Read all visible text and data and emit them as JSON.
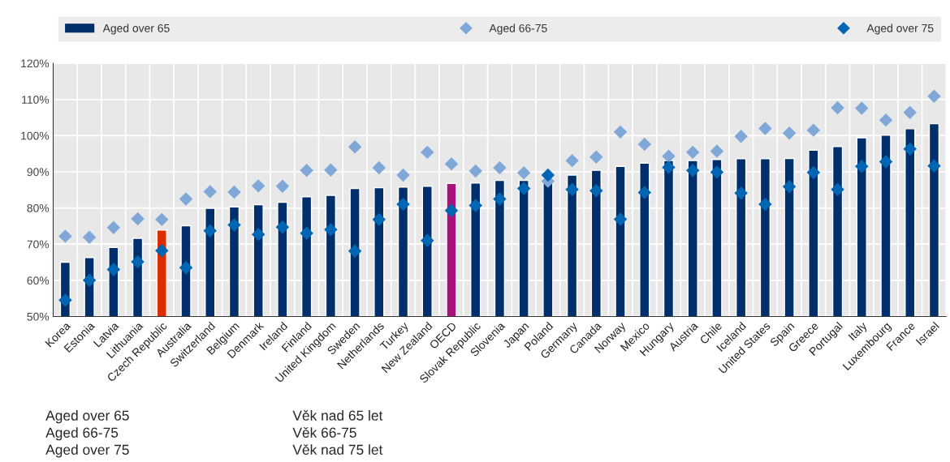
{
  "chart_data": {
    "type": "bar",
    "categories": [
      "Korea",
      "Estonia",
      "Latvia",
      "Lithuania",
      "Czech Republic",
      "Australia",
      "Switzerland",
      "Belgium",
      "Denmark",
      "Ireland",
      "Finland",
      "United Kingdom",
      "Sweden",
      "Netherlands",
      "Turkey",
      "New Zealand",
      "OECD",
      "Slovak Republic",
      "Slovenia",
      "Japan",
      "Poland",
      "Germany",
      "Canada",
      "Norway",
      "Mexico",
      "Hungary",
      "Austria",
      "Chile",
      "Iceland",
      "United States",
      "Spain",
      "Greece",
      "Portugal",
      "Italy",
      "Luxembourg",
      "France",
      "Israel"
    ],
    "series": [
      {
        "name": "Aged over 65",
        "color": "#002f6c",
        "colors": [
          "#002f6c",
          "#002f6c",
          "#002f6c",
          "#002f6c",
          "#dc2d00",
          "#002f6c",
          "#002f6c",
          "#002f6c",
          "#002f6c",
          "#002f6c",
          "#002f6c",
          "#002f6c",
          "#002f6c",
          "#002f6c",
          "#002f6c",
          "#002f6c",
          "#a6137a",
          "#002f6c",
          "#002f6c",
          "#002f6c",
          "#002f6c",
          "#002f6c",
          "#002f6c",
          "#002f6c",
          "#002f6c",
          "#002f6c",
          "#002f6c",
          "#002f6c",
          "#002f6c",
          "#002f6c",
          "#002f6c",
          "#002f6c",
          "#002f6c",
          "#002f6c",
          "#002f6c",
          "#002f6c",
          "#002f6c"
        ],
        "values": [
          65.0,
          66.3,
          69.1,
          71.6,
          73.9,
          75.1,
          79.9,
          80.3,
          80.9,
          81.6,
          83.1,
          83.5,
          85.4,
          85.6,
          85.8,
          86.0,
          86.8,
          86.9,
          87.6,
          87.6,
          88.0,
          89.1,
          90.4,
          91.5,
          92.4,
          93.1,
          93.1,
          93.4,
          93.6,
          93.6,
          93.7,
          96.0,
          97.0,
          99.4,
          100.1,
          101.9,
          103.3
        ]
      },
      {
        "name": "Aged 66-75",
        "type": "scatter",
        "marker": "diamond",
        "color": "#7fa8d9",
        "values": [
          72.2,
          71.9,
          74.6,
          77.0,
          76.8,
          82.5,
          84.5,
          84.4,
          86.1,
          86.0,
          90.4,
          90.5,
          96.9,
          91.1,
          89.1,
          95.4,
          92.2,
          90.2,
          91.1,
          89.7,
          87.4,
          93.1,
          94.1,
          101.0,
          97.6,
          94.3,
          95.4,
          95.7,
          99.8,
          102.0,
          100.7,
          101.5,
          107.7,
          107.6,
          104.3,
          106.4,
          110.9
        ]
      },
      {
        "name": "Aged over 75",
        "type": "scatter",
        "marker": "diamond",
        "color": "#0066b3",
        "values": [
          54.5,
          60.0,
          63.0,
          65.1,
          68.2,
          63.5,
          73.7,
          75.3,
          72.7,
          74.7,
          73.0,
          74.0,
          68.1,
          76.8,
          81.0,
          71.0,
          79.3,
          80.7,
          82.5,
          85.4,
          89.1,
          85.1,
          84.8,
          76.9,
          84.3,
          91.2,
          90.4,
          89.9,
          84.1,
          81.0,
          85.9,
          89.8,
          85.1,
          91.5,
          92.8,
          96.3,
          91.6
        ]
      }
    ],
    "ylim": [
      50,
      120
    ],
    "yticks": [
      {
        "value": 50,
        "label": "50%"
      },
      {
        "value": 60,
        "label": "60%"
      },
      {
        "value": 70,
        "label": "70%"
      },
      {
        "value": 80,
        "label": "80%"
      },
      {
        "value": 90,
        "label": "90%"
      },
      {
        "value": 100,
        "label": "100%"
      },
      {
        "value": 110,
        "label": "110%"
      },
      {
        "value": 120,
        "label": "120%"
      }
    ],
    "grid": true,
    "legend": "top",
    "annotations": [
      "Aged over 65",
      "Věk nad 65 let",
      "Aged 66-75",
      "Věk 66-75",
      "Aged over 75",
      "Věk nad 75 let"
    ]
  }
}
